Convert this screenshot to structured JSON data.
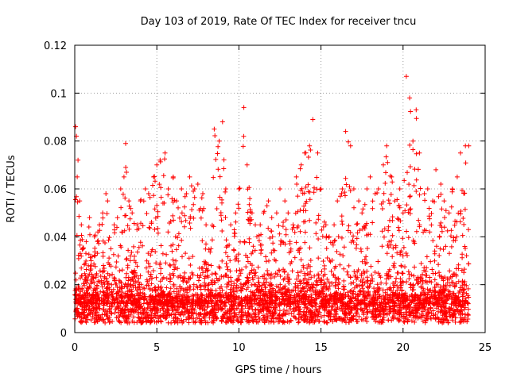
{
  "chart_data": {
    "type": "scatter",
    "title": "Day 103 of 2019, Rate Of TEC Index for receiver tncu",
    "xlabel": "GPS time / hours",
    "ylabel": "ROTI / TECUs",
    "xlim": [
      0,
      25
    ],
    "ylim": [
      0,
      0.12
    ],
    "xticks": [
      0,
      5,
      10,
      15,
      20,
      25
    ],
    "xtick_labels": [
      "0",
      "5",
      "10",
      "15",
      "20",
      "25"
    ],
    "yticks": [
      0,
      0.02,
      0.04,
      0.06,
      0.08,
      0.1,
      0.12
    ],
    "ytick_labels": [
      "0",
      "0.02",
      "0.04",
      "0.06",
      "0.08",
      "0.1",
      "0.12"
    ],
    "grid": true,
    "marker": "+",
    "color": "#ff0000",
    "series": [
      {
        "name": "ROTI",
        "x": [
          0.05,
          0.1,
          0.15,
          0.2,
          0.3,
          0.4,
          0.5,
          0.7,
          0.9,
          1.0,
          1.2,
          1.5,
          1.7,
          1.9,
          2.0,
          2.2,
          2.4,
          2.6,
          2.8,
          3.0,
          3.1,
          3.3,
          3.5,
          3.8,
          4.0,
          4.3,
          4.5,
          4.8,
          5.0,
          5.2,
          5.5,
          5.7,
          6.0,
          6.2,
          6.5,
          6.8,
          7.0,
          7.3,
          7.5,
          7.8,
          8.0,
          8.3,
          8.5,
          8.8,
          9.0,
          9.2,
          9.5,
          9.8,
          10.0,
          10.3,
          10.5,
          10.8,
          11.0,
          11.3,
          11.5,
          11.8,
          12.0,
          12.3,
          12.5,
          12.8,
          13.0,
          13.3,
          13.5,
          13.8,
          14.0,
          14.3,
          14.5,
          14.8,
          15.0,
          15.3,
          15.5,
          15.8,
          16.0,
          16.3,
          16.5,
          16.8,
          17.0,
          17.3,
          17.5,
          17.8,
          18.0,
          18.3,
          18.5,
          18.8,
          19.0,
          19.3,
          19.5,
          19.8,
          20.0,
          20.2,
          20.4,
          20.6,
          20.8,
          21.0,
          21.3,
          21.5,
          21.8,
          22.0,
          22.3,
          22.5,
          22.8,
          23.0,
          23.3,
          23.5,
          23.8,
          24.0
        ],
        "y": [
          0.086,
          0.082,
          0.065,
          0.072,
          0.055,
          0.045,
          0.035,
          0.038,
          0.048,
          0.03,
          0.04,
          0.045,
          0.05,
          0.058,
          0.055,
          0.035,
          0.045,
          0.048,
          0.06,
          0.065,
          0.079,
          0.055,
          0.05,
          0.045,
          0.055,
          0.06,
          0.058,
          0.065,
          0.07,
          0.072,
          0.075,
          0.06,
          0.065,
          0.055,
          0.06,
          0.058,
          0.065,
          0.06,
          0.062,
          0.058,
          0.045,
          0.035,
          0.085,
          0.08,
          0.088,
          0.06,
          0.045,
          0.05,
          0.06,
          0.094,
          0.07,
          0.05,
          0.045,
          0.045,
          0.05,
          0.055,
          0.048,
          0.05,
          0.06,
          0.055,
          0.05,
          0.045,
          0.065,
          0.07,
          0.075,
          0.078,
          0.089,
          0.075,
          0.06,
          0.045,
          0.04,
          0.045,
          0.055,
          0.06,
          0.084,
          0.078,
          0.06,
          0.055,
          0.05,
          0.06,
          0.065,
          0.058,
          0.06,
          0.07,
          0.078,
          0.065,
          0.055,
          0.06,
          0.05,
          0.107,
          0.098,
          0.08,
          0.093,
          0.075,
          0.058,
          0.06,
          0.055,
          0.068,
          0.062,
          0.055,
          0.05,
          0.06,
          0.065,
          0.075,
          0.078,
          0.078
        ]
      }
    ]
  }
}
